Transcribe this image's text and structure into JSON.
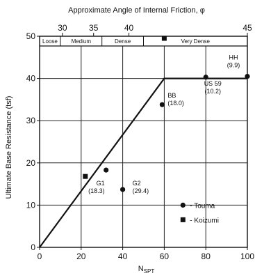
{
  "chart_data": {
    "type": "scatter",
    "title": "",
    "xlabel_main": "N",
    "xlabel_sub": "SPT",
    "ylabel": "Ultimate Base Resistance (tsf)",
    "xlim": [
      0,
      100
    ],
    "ylim": [
      0,
      50
    ],
    "x_ticks": [
      0,
      20,
      40,
      60,
      80,
      100
    ],
    "y_ticks": [
      0,
      10,
      20,
      30,
      40,
      50
    ],
    "grid": true,
    "top_axis": {
      "title": "Approximate Angle of Internal Friction, φ",
      "ticks": [
        {
          "label": "30",
          "n": 11
        },
        {
          "label": "35",
          "n": 26
        },
        {
          "label": "40",
          "n": 43
        },
        {
          "label": "45",
          "n": 100
        }
      ],
      "density_bands": [
        {
          "label": "Loose",
          "from": 0,
          "to": 10
        },
        {
          "label": "Medium",
          "from": 10,
          "to": 30
        },
        {
          "label": "Dense",
          "from": 30,
          "to": 50
        },
        {
          "label": "Very Dense",
          "from": 50,
          "to": 100
        }
      ]
    },
    "design_line": [
      [
        0,
        0
      ],
      [
        60,
        40
      ],
      [
        100,
        40
      ]
    ],
    "series": [
      {
        "name": "Touma",
        "marker": "circle",
        "points": [
          {
            "x": 32,
            "y": 18.3,
            "label": "G1",
            "sub": "(18.3)"
          },
          {
            "x": 40,
            "y": 13.7,
            "label": "G2",
            "sub": "(29.4)"
          },
          {
            "x": 59,
            "y": 33.8,
            "label": "BB",
            "sub": "(18.0)"
          },
          {
            "x": 80,
            "y": 40.3,
            "label": "US 59",
            "sub": "(10.2)"
          },
          {
            "x": 100,
            "y": 40.5,
            "label": "HH",
            "sub": "(9.9)"
          }
        ]
      },
      {
        "name": "Koizumi",
        "marker": "square",
        "points": [
          {
            "x": 22,
            "y": 16.8
          },
          {
            "x": 60,
            "y": 49.5
          }
        ]
      }
    ],
    "legend_placement": "bottom-right"
  }
}
